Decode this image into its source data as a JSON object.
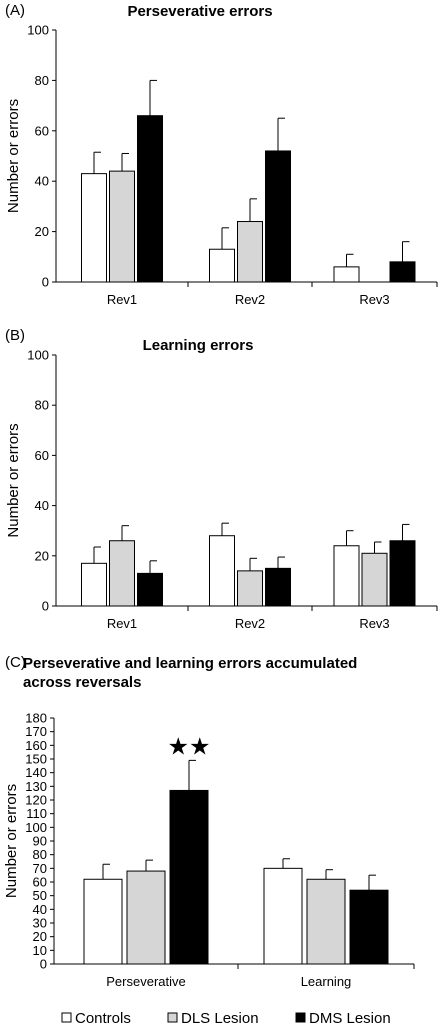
{
  "legend": {
    "items": [
      {
        "label": "Controls",
        "color": "#ffffff"
      },
      {
        "label": "DLS Lesion",
        "color": "#d6d6d6"
      },
      {
        "label": "DMS Lesion",
        "color": "#000000"
      }
    ]
  },
  "chart_data": [
    {
      "type": "bar",
      "panel": "(A)",
      "title": "Perseverative errors",
      "ylabel": "Number or errors",
      "ylim": [
        0,
        100
      ],
      "yticks": [
        0,
        20,
        40,
        60,
        80,
        100
      ],
      "categories": [
        "Rev1",
        "Rev2",
        "Rev3"
      ],
      "series": [
        {
          "name": "Controls",
          "values": [
            43,
            13,
            6
          ],
          "errors": [
            8.5,
            8.5,
            5
          ]
        },
        {
          "name": "DLS Lesion",
          "values": [
            44,
            24,
            0
          ],
          "errors": [
            7,
            9,
            0
          ]
        },
        {
          "name": "DMS Lesion",
          "values": [
            66,
            52,
            8
          ],
          "errors": [
            14,
            13,
            8
          ]
        }
      ],
      "annotations": []
    },
    {
      "type": "bar",
      "panel": "(B)",
      "title": "Learning errors",
      "ylabel": "Number or errors",
      "ylim": [
        0,
        100
      ],
      "yticks": [
        0,
        20,
        40,
        60,
        80,
        100
      ],
      "categories": [
        "Rev1",
        "Rev2",
        "Rev3"
      ],
      "series": [
        {
          "name": "Controls",
          "values": [
            17,
            28,
            24
          ],
          "errors": [
            6.5,
            5,
            6
          ]
        },
        {
          "name": "DLS Lesion",
          "values": [
            26,
            14,
            21
          ],
          "errors": [
            6,
            5,
            4.5
          ]
        },
        {
          "name": "DMS Lesion",
          "values": [
            13,
            15,
            26
          ],
          "errors": [
            5,
            4.5,
            6.5
          ]
        }
      ],
      "annotations": []
    },
    {
      "type": "bar",
      "panel": "(C)",
      "title": "Perseverative and learning errors accumulated across reversals",
      "title_lines": [
        "Perseverative and learning errors accumulated",
        "across reversals"
      ],
      "ylabel": "Number or errors",
      "ylim": [
        0,
        180
      ],
      "yticks": [
        0,
        10,
        20,
        30,
        40,
        50,
        60,
        70,
        80,
        90,
        100,
        110,
        120,
        130,
        140,
        150,
        160,
        170,
        180
      ],
      "categories": [
        "Perseverative",
        "Learning"
      ],
      "series": [
        {
          "name": "Controls",
          "values": [
            62,
            70
          ],
          "errors": [
            11,
            7
          ]
        },
        {
          "name": "DLS Lesion",
          "values": [
            68,
            62
          ],
          "errors": [
            8,
            7
          ]
        },
        {
          "name": "DMS Lesion",
          "values": [
            127,
            54
          ],
          "errors": [
            22,
            11
          ]
        }
      ],
      "annotations": [
        {
          "text": "★★",
          "category": 0,
          "series": 2
        }
      ]
    }
  ]
}
